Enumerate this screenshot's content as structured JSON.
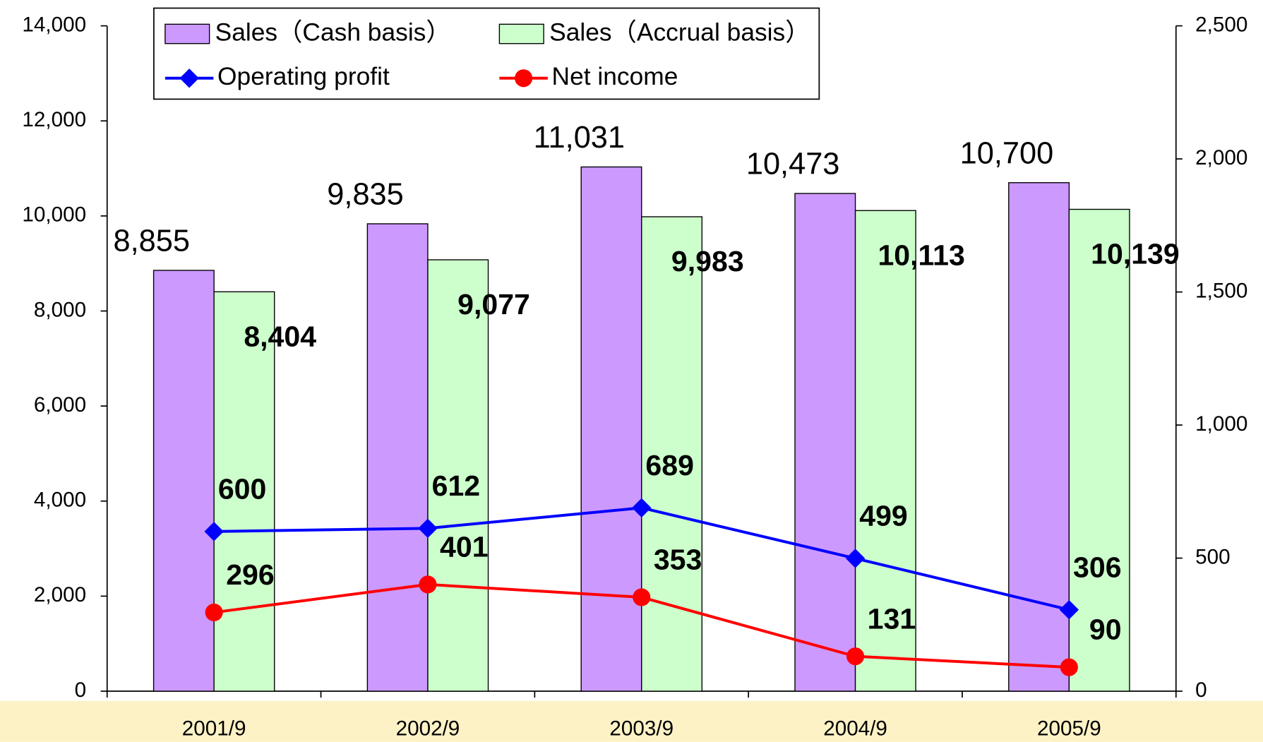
{
  "chart_data": {
    "type": "bar",
    "categories": [
      "2001/9",
      "2002/9",
      "2003/9",
      "2004/9",
      "2005/9"
    ],
    "ylim": [
      0,
      14000
    ],
    "yticks": [
      0,
      {
        "value": 2000,
        "label": "2,000"
      },
      {
        "value": 4000,
        "label": "4,000"
      },
      {
        "value": 6000,
        "label": "6,000"
      },
      {
        "value": 8000,
        "label": "8,000"
      },
      {
        "value": 10000,
        "label": "10,000"
      },
      {
        "value": 12000,
        "label": "12,000"
      },
      {
        "value": 14000,
        "label": "14,000"
      }
    ],
    "y2lim": [
      0,
      2500
    ],
    "y2ticks": [
      0,
      500,
      {
        "value": 1000,
        "label": "1,000"
      },
      {
        "value": 1500,
        "label": "1,500"
      },
      {
        "value": 2000,
        "label": "2,000"
      },
      {
        "value": 2500,
        "label": "2,500"
      }
    ],
    "series": [
      {
        "name": "Sales（Cash basis）",
        "type": "bar",
        "color": "#cc99ff",
        "values": [
          8855,
          9835,
          11031,
          10473,
          10700
        ],
        "value_labels": [
          "8,855",
          "9,835",
          "11,031",
          "10,473",
          "10,700"
        ]
      },
      {
        "name": "Sales（Accrual basis）",
        "type": "bar",
        "color": "#ccffcc",
        "values": [
          8404,
          9077,
          9983,
          10113,
          10139
        ],
        "value_labels": [
          "8,404",
          "9,077",
          "9,983",
          "10,113",
          "10,139"
        ]
      },
      {
        "name": "Operating profit",
        "type": "line",
        "axis": "y2",
        "color": "#0000ff",
        "marker": "diamond",
        "values": [
          600,
          612,
          689,
          499,
          306
        ]
      },
      {
        "name": "Net income",
        "type": "line",
        "axis": "y2",
        "color": "#ff0000",
        "marker": "circle",
        "values": [
          296,
          401,
          353,
          131,
          90
        ]
      }
    ]
  }
}
